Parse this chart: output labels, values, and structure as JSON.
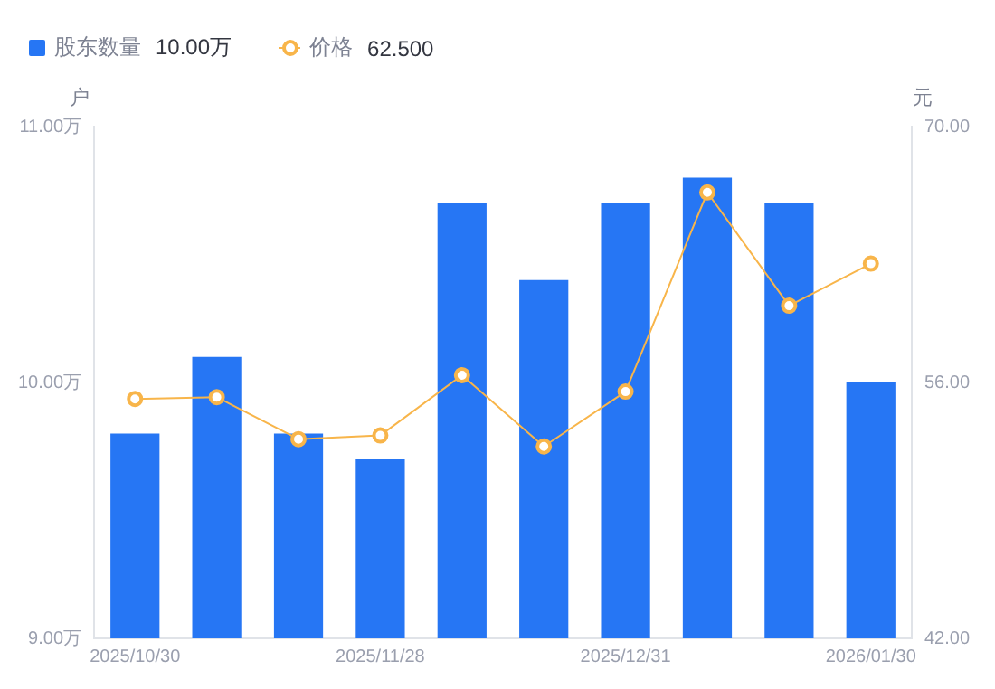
{
  "chart_data": {
    "type": "bar",
    "categories": [
      "2025/10/30",
      null,
      null,
      "2025/11/28",
      null,
      null,
      "2025/12/31",
      null,
      null,
      "2026/01/30"
    ],
    "series": [
      {
        "name": "股东数量",
        "color": "#2676f4",
        "values": [
          9.8,
          10.1,
          9.8,
          9.7,
          10.7,
          10.4,
          10.7,
          10.8,
          10.7,
          10.0
        ]
      },
      {
        "name": "价格",
        "type": "line",
        "axis": "y2",
        "color": "#f8b54a",
        "marker": "circle",
        "values": [
          55.1,
          55.2,
          52.9,
          53.1,
          56.4,
          52.5,
          55.5,
          66.4,
          60.2,
          62.5
        ]
      }
    ],
    "ylabel": "户",
    "y2label": "元",
    "ylim": [
      9,
      11
    ],
    "yticks": [
      {
        "value": 9,
        "label": "9.00万"
      },
      {
        "value": 10,
        "label": "10.00万"
      },
      {
        "value": 11,
        "label": "11.00万"
      }
    ],
    "y2lim": [
      42,
      70
    ],
    "y2ticks": [
      {
        "value": 42,
        "label": "42.00"
      },
      {
        "value": 56,
        "label": "56.00"
      },
      {
        "value": 70,
        "label": "70.00"
      }
    ],
    "annotations": [
      "10.00万",
      "62.500"
    ],
    "legend": "top left",
    "grid": false
  }
}
